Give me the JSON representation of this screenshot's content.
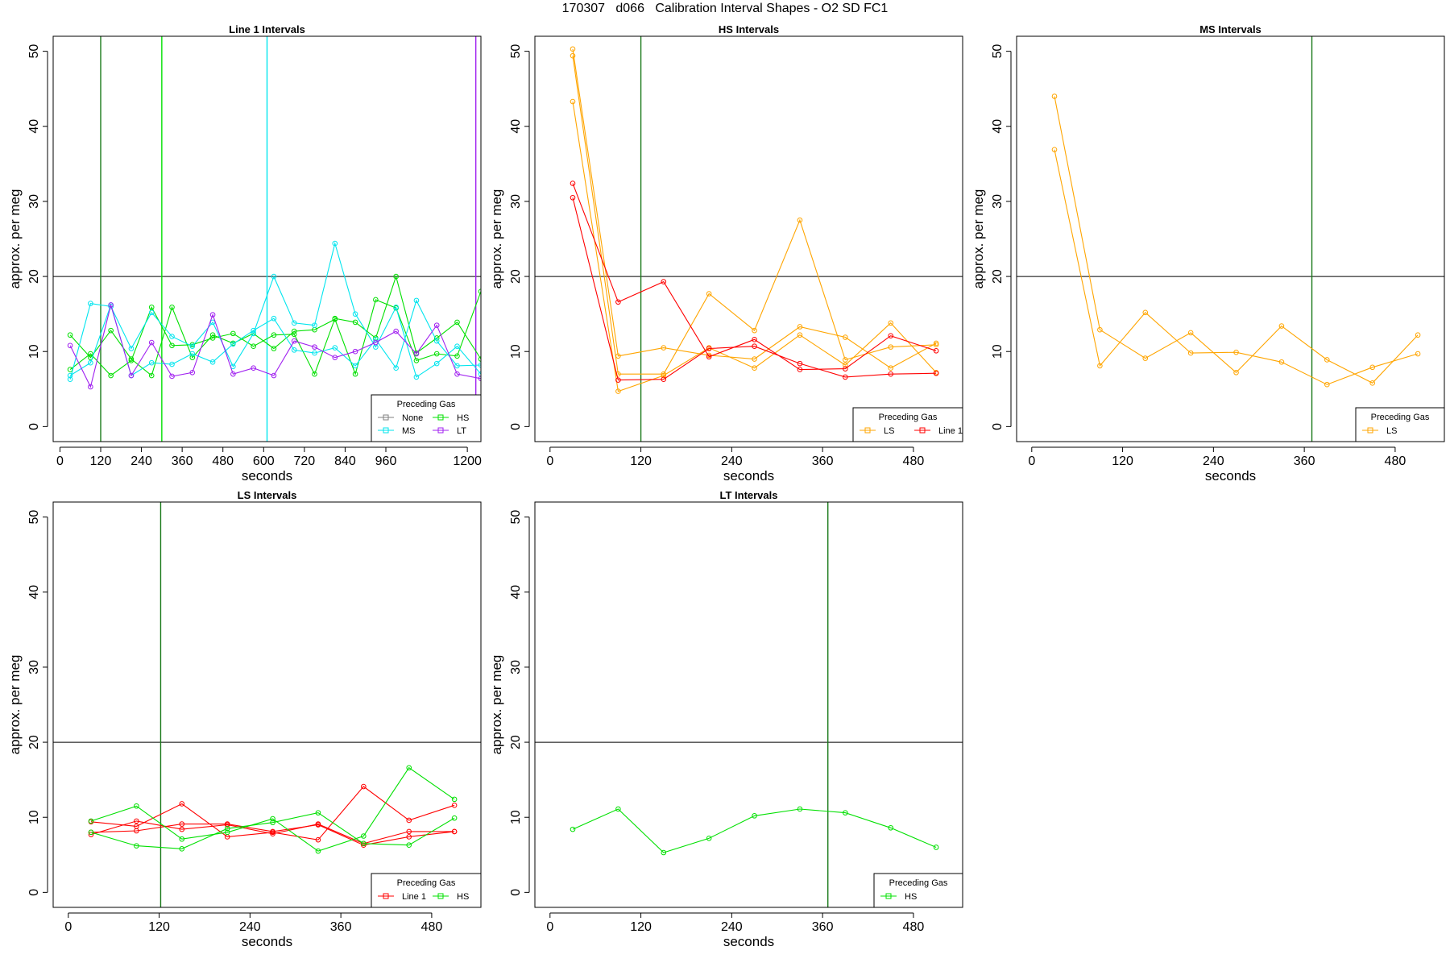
{
  "figure": {
    "title": "170307   d066   Calibration Interval Shapes - O2 SD FC1"
  },
  "colors": {
    "None": "#808080",
    "HS": "#00e000",
    "MS": "#00e5ee",
    "LT": "#a020f0",
    "LS": "#ffa500",
    "Line 1": "#ff0000",
    "ref_line": "#000000",
    "cal_line": "#1a7a1a"
  },
  "chart_data": [
    {
      "type": "line",
      "title": "Line 1 Intervals",
      "xlabel": "seconds",
      "ylabel": "approx. per meg",
      "xticks": [
        0,
        120,
        240,
        360,
        480,
        600,
        720,
        840,
        960,
        1200
      ],
      "yticks": [
        0,
        10,
        20,
        30,
        40,
        50
      ],
      "xlim": [
        -20,
        1240
      ],
      "ylim": [
        -2,
        52
      ],
      "hline": 20,
      "vlines": [
        {
          "x": 120,
          "color": "#1a7a1a"
        },
        {
          "x": 300,
          "color": "#00e000"
        },
        {
          "x": 610,
          "color": "#00e5ee"
        },
        {
          "x": 1225,
          "color": "#a020f0"
        }
      ],
      "legend": {
        "title": "Preceding Gas",
        "position": "bottom-right",
        "entries": [
          "None",
          "HS",
          "MS",
          "LT"
        ]
      },
      "series": [
        {
          "name": "HS",
          "x": [
            30,
            90,
            150,
            210,
            270,
            330,
            390,
            450,
            510,
            570,
            630,
            690,
            750,
            810,
            870,
            930,
            990,
            1050,
            1110,
            1170,
            1240
          ],
          "y": [
            12.2,
            9.2,
            12.8,
            9.0,
            6.8,
            15.9,
            9.2,
            12.2,
            11.1,
            12.4,
            10.4,
            12.7,
            12.9,
            14.3,
            7.0,
            16.9,
            15.8,
            8.8,
            9.7,
            9.4,
            18.0
          ]
        },
        {
          "name": "HS",
          "x": [
            30,
            90,
            150,
            210,
            270,
            330,
            390,
            450,
            510,
            570,
            630,
            690,
            750,
            810,
            870,
            930,
            990,
            1050,
            1110,
            1170,
            1240
          ],
          "y": [
            7.6,
            9.7,
            6.8,
            8.8,
            15.9,
            10.8,
            10.9,
            11.8,
            12.4,
            10.7,
            12.2,
            12.3,
            7.0,
            14.4,
            13.9,
            11.8,
            20.0,
            9.8,
            11.8,
            13.9,
            9.0
          ]
        },
        {
          "name": "MS",
          "x": [
            30,
            90,
            150,
            210,
            270,
            330,
            390,
            450,
            510,
            570,
            630,
            690,
            750,
            810,
            870,
            930,
            990,
            1050,
            1110,
            1170,
            1240
          ],
          "y": [
            6.3,
            16.4,
            16.0,
            10.4,
            15.2,
            12.0,
            10.7,
            13.9,
            8.0,
            12.4,
            20.0,
            13.8,
            13.5,
            24.4,
            15.0,
            10.6,
            15.9,
            6.6,
            8.4,
            10.7,
            7.0
          ]
        },
        {
          "name": "MS",
          "x": [
            30,
            90,
            150,
            210,
            270,
            330,
            390,
            450,
            510,
            570,
            630,
            690,
            750,
            810,
            870,
            930,
            990,
            1050,
            1110,
            1170,
            1240
          ],
          "y": [
            6.8,
            8.5,
            16.2,
            6.8,
            8.5,
            8.3,
            9.7,
            8.6,
            11.0,
            12.8,
            14.4,
            10.2,
            9.8,
            10.5,
            8.1,
            11.6,
            7.8,
            16.8,
            11.4,
            8.1,
            8.2
          ]
        },
        {
          "name": "LT",
          "x": [
            30,
            90,
            150,
            210,
            270,
            330,
            390,
            450,
            510,
            570,
            630,
            690,
            750,
            810,
            870,
            930,
            990,
            1050,
            1110,
            1170,
            1240
          ],
          "y": [
            10.8,
            5.3,
            16.2,
            6.8,
            11.2,
            6.7,
            7.2,
            14.9,
            7.0,
            7.8,
            6.8,
            11.4,
            10.6,
            9.2,
            10.0,
            11.2,
            12.7,
            9.7,
            13.5,
            7.0,
            6.4
          ]
        }
      ]
    },
    {
      "type": "line",
      "title": "HS Intervals",
      "xlabel": "seconds",
      "ylabel": "approx. per meg",
      "xticks": [
        0,
        120,
        240,
        360,
        480
      ],
      "yticks": [
        0,
        10,
        20,
        30,
        40,
        50
      ],
      "xlim": [
        -20,
        545
      ],
      "ylim": [
        -2,
        52
      ],
      "hline": 20,
      "vlines": [
        {
          "x": 120,
          "color": "#1a7a1a"
        }
      ],
      "legend": {
        "title": "Preceding Gas",
        "position": "bottom-right",
        "entries": [
          "LS",
          "Line 1"
        ]
      },
      "series": [
        {
          "name": "LS",
          "x": [
            30,
            90,
            150,
            210,
            270,
            330,
            390,
            450,
            510
          ],
          "y": [
            50.3,
            9.4,
            10.5,
            9.5,
            9.0,
            13.3,
            11.9,
            7.8,
            11.1
          ]
        },
        {
          "name": "LS",
          "x": [
            30,
            90,
            150,
            210,
            270,
            330,
            390,
            450,
            510
          ],
          "y": [
            49.4,
            7.0,
            7.0,
            17.7,
            12.8,
            27.5,
            8.9,
            10.6,
            10.9
          ]
        },
        {
          "name": "LS",
          "x": [
            30,
            90,
            150,
            210,
            270,
            330,
            390,
            450,
            510
          ],
          "y": [
            43.3,
            4.7,
            6.8,
            10.5,
            7.8,
            12.2,
            8.2,
            13.8,
            7.2
          ]
        },
        {
          "name": "Line 1",
          "x": [
            30,
            90,
            150,
            210,
            270,
            330,
            390,
            450,
            510
          ],
          "y": [
            32.4,
            16.6,
            19.3,
            9.3,
            11.6,
            7.6,
            7.7,
            12.1,
            10.1
          ]
        },
        {
          "name": "Line 1",
          "x": [
            30,
            90,
            150,
            210,
            270,
            330,
            390,
            450,
            510
          ],
          "y": [
            30.5,
            6.2,
            6.3,
            10.4,
            10.7,
            8.4,
            6.6,
            7.0,
            7.1
          ]
        }
      ]
    },
    {
      "type": "line",
      "title": "MS Intervals",
      "xlabel": "seconds",
      "ylabel": "approx. per meg",
      "xticks": [
        0,
        120,
        240,
        360,
        480
      ],
      "yticks": [
        0,
        10,
        20,
        30,
        40,
        50
      ],
      "xlim": [
        -20,
        545
      ],
      "ylim": [
        -2,
        52
      ],
      "hline": 20,
      "vlines": [
        {
          "x": 370,
          "color": "#1a7a1a"
        }
      ],
      "legend": {
        "title": "Preceding Gas",
        "position": "bottom-right",
        "entries": [
          "LS"
        ]
      },
      "series": [
        {
          "name": "LS",
          "x": [
            30,
            90,
            150,
            210,
            270,
            330,
            390,
            450,
            510
          ],
          "y": [
            44.0,
            12.9,
            9.1,
            12.5,
            7.2,
            13.4,
            8.9,
            5.8,
            12.2
          ]
        },
        {
          "name": "LS",
          "x": [
            30,
            90,
            150,
            210,
            270,
            330,
            390,
            450,
            510
          ],
          "y": [
            36.9,
            8.1,
            15.2,
            9.8,
            9.9,
            8.6,
            5.6,
            7.9,
            9.7
          ]
        }
      ]
    },
    {
      "type": "line",
      "title": "LS Intervals",
      "xlabel": "seconds",
      "ylabel": "approx. per meg",
      "xticks": [
        0,
        120,
        240,
        360,
        480
      ],
      "yticks": [
        0,
        10,
        20,
        30,
        40,
        50
      ],
      "xlim": [
        -20,
        545
      ],
      "ylim": [
        -2,
        52
      ],
      "hline": 20,
      "vlines": [
        {
          "x": 122,
          "color": "#1a7a1a"
        }
      ],
      "legend": {
        "title": "Preceding Gas",
        "position": "bottom-right",
        "entries": [
          "Line 1",
          "HS"
        ]
      },
      "series": [
        {
          "name": "Line 1",
          "x": [
            30,
            90,
            150,
            210,
            270,
            330,
            390,
            450,
            510
          ],
          "y": [
            9.4,
            8.8,
            11.8,
            7.4,
            8.0,
            7.0,
            14.1,
            9.6,
            11.6
          ]
        },
        {
          "name": "Line 1",
          "x": [
            30,
            90,
            150,
            210,
            270,
            330,
            390,
            450,
            510
          ],
          "y": [
            8.0,
            8.2,
            9.1,
            9.1,
            8.1,
            9.0,
            6.3,
            7.4,
            8.1
          ]
        },
        {
          "name": "Line 1",
          "x": [
            30,
            90,
            150,
            210,
            270,
            330,
            390,
            450,
            510
          ],
          "y": [
            7.7,
            9.5,
            8.4,
            9.0,
            7.8,
            9.1,
            6.5,
            8.1,
            8.1
          ]
        },
        {
          "name": "HS",
          "x": [
            30,
            90,
            150,
            210,
            270,
            330,
            390,
            450,
            510
          ],
          "y": [
            9.5,
            11.5,
            7.1,
            8.0,
            9.8,
            5.5,
            7.5,
            16.6,
            12.4
          ]
        },
        {
          "name": "HS",
          "x": [
            30,
            90,
            150,
            210,
            270,
            330,
            390,
            450,
            510
          ],
          "y": [
            8.0,
            6.2,
            5.8,
            8.5,
            9.3,
            10.6,
            6.5,
            6.3,
            9.9
          ]
        }
      ]
    },
    {
      "type": "line",
      "title": "LT Intervals",
      "xlabel": "seconds",
      "ylabel": "approx. per meg",
      "xticks": [
        0,
        120,
        240,
        360,
        480
      ],
      "yticks": [
        0,
        10,
        20,
        30,
        40,
        50
      ],
      "xlim": [
        -20,
        545
      ],
      "ylim": [
        -2,
        52
      ],
      "hline": 20,
      "vlines": [
        {
          "x": 367,
          "color": "#1a7a1a"
        }
      ],
      "legend": {
        "title": "Preceding Gas",
        "position": "bottom-right",
        "entries": [
          "HS"
        ]
      },
      "series": [
        {
          "name": "HS",
          "x": [
            30,
            90,
            150,
            210,
            270,
            330,
            390,
            450,
            510
          ],
          "y": [
            8.4,
            11.1,
            5.3,
            7.2,
            10.2,
            11.1,
            10.6,
            8.6,
            6.0
          ]
        }
      ]
    }
  ]
}
